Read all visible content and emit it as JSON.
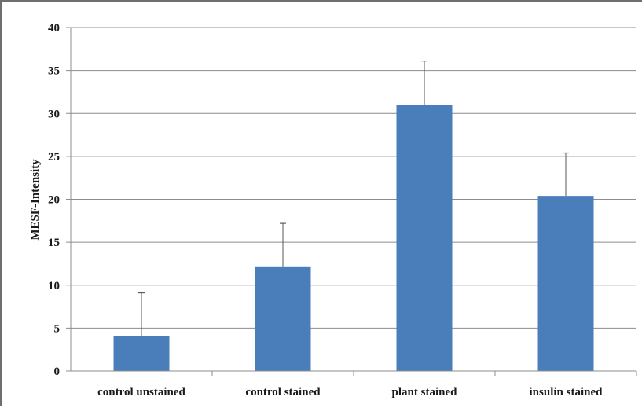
{
  "chart_data": {
    "type": "bar",
    "categories": [
      "control unstained",
      "control stained",
      "plant stained",
      "insulin stained"
    ],
    "values": [
      4.1,
      12.1,
      31.0,
      20.4
    ],
    "error_plus": [
      5.0,
      5.1,
      5.1,
      5.0
    ],
    "ylabel": "MESF-Intensity",
    "xlabel": "",
    "title": "",
    "ylim": [
      0,
      40
    ],
    "yticks": [
      0,
      5,
      10,
      15,
      20,
      25,
      30,
      35,
      40
    ],
    "grid": true,
    "legend": "none",
    "colors": {
      "bar": "#4a7ebb",
      "grid": "#8c8c8c",
      "axis": "#8c8c8c",
      "error": "#5a5a5a"
    }
  }
}
